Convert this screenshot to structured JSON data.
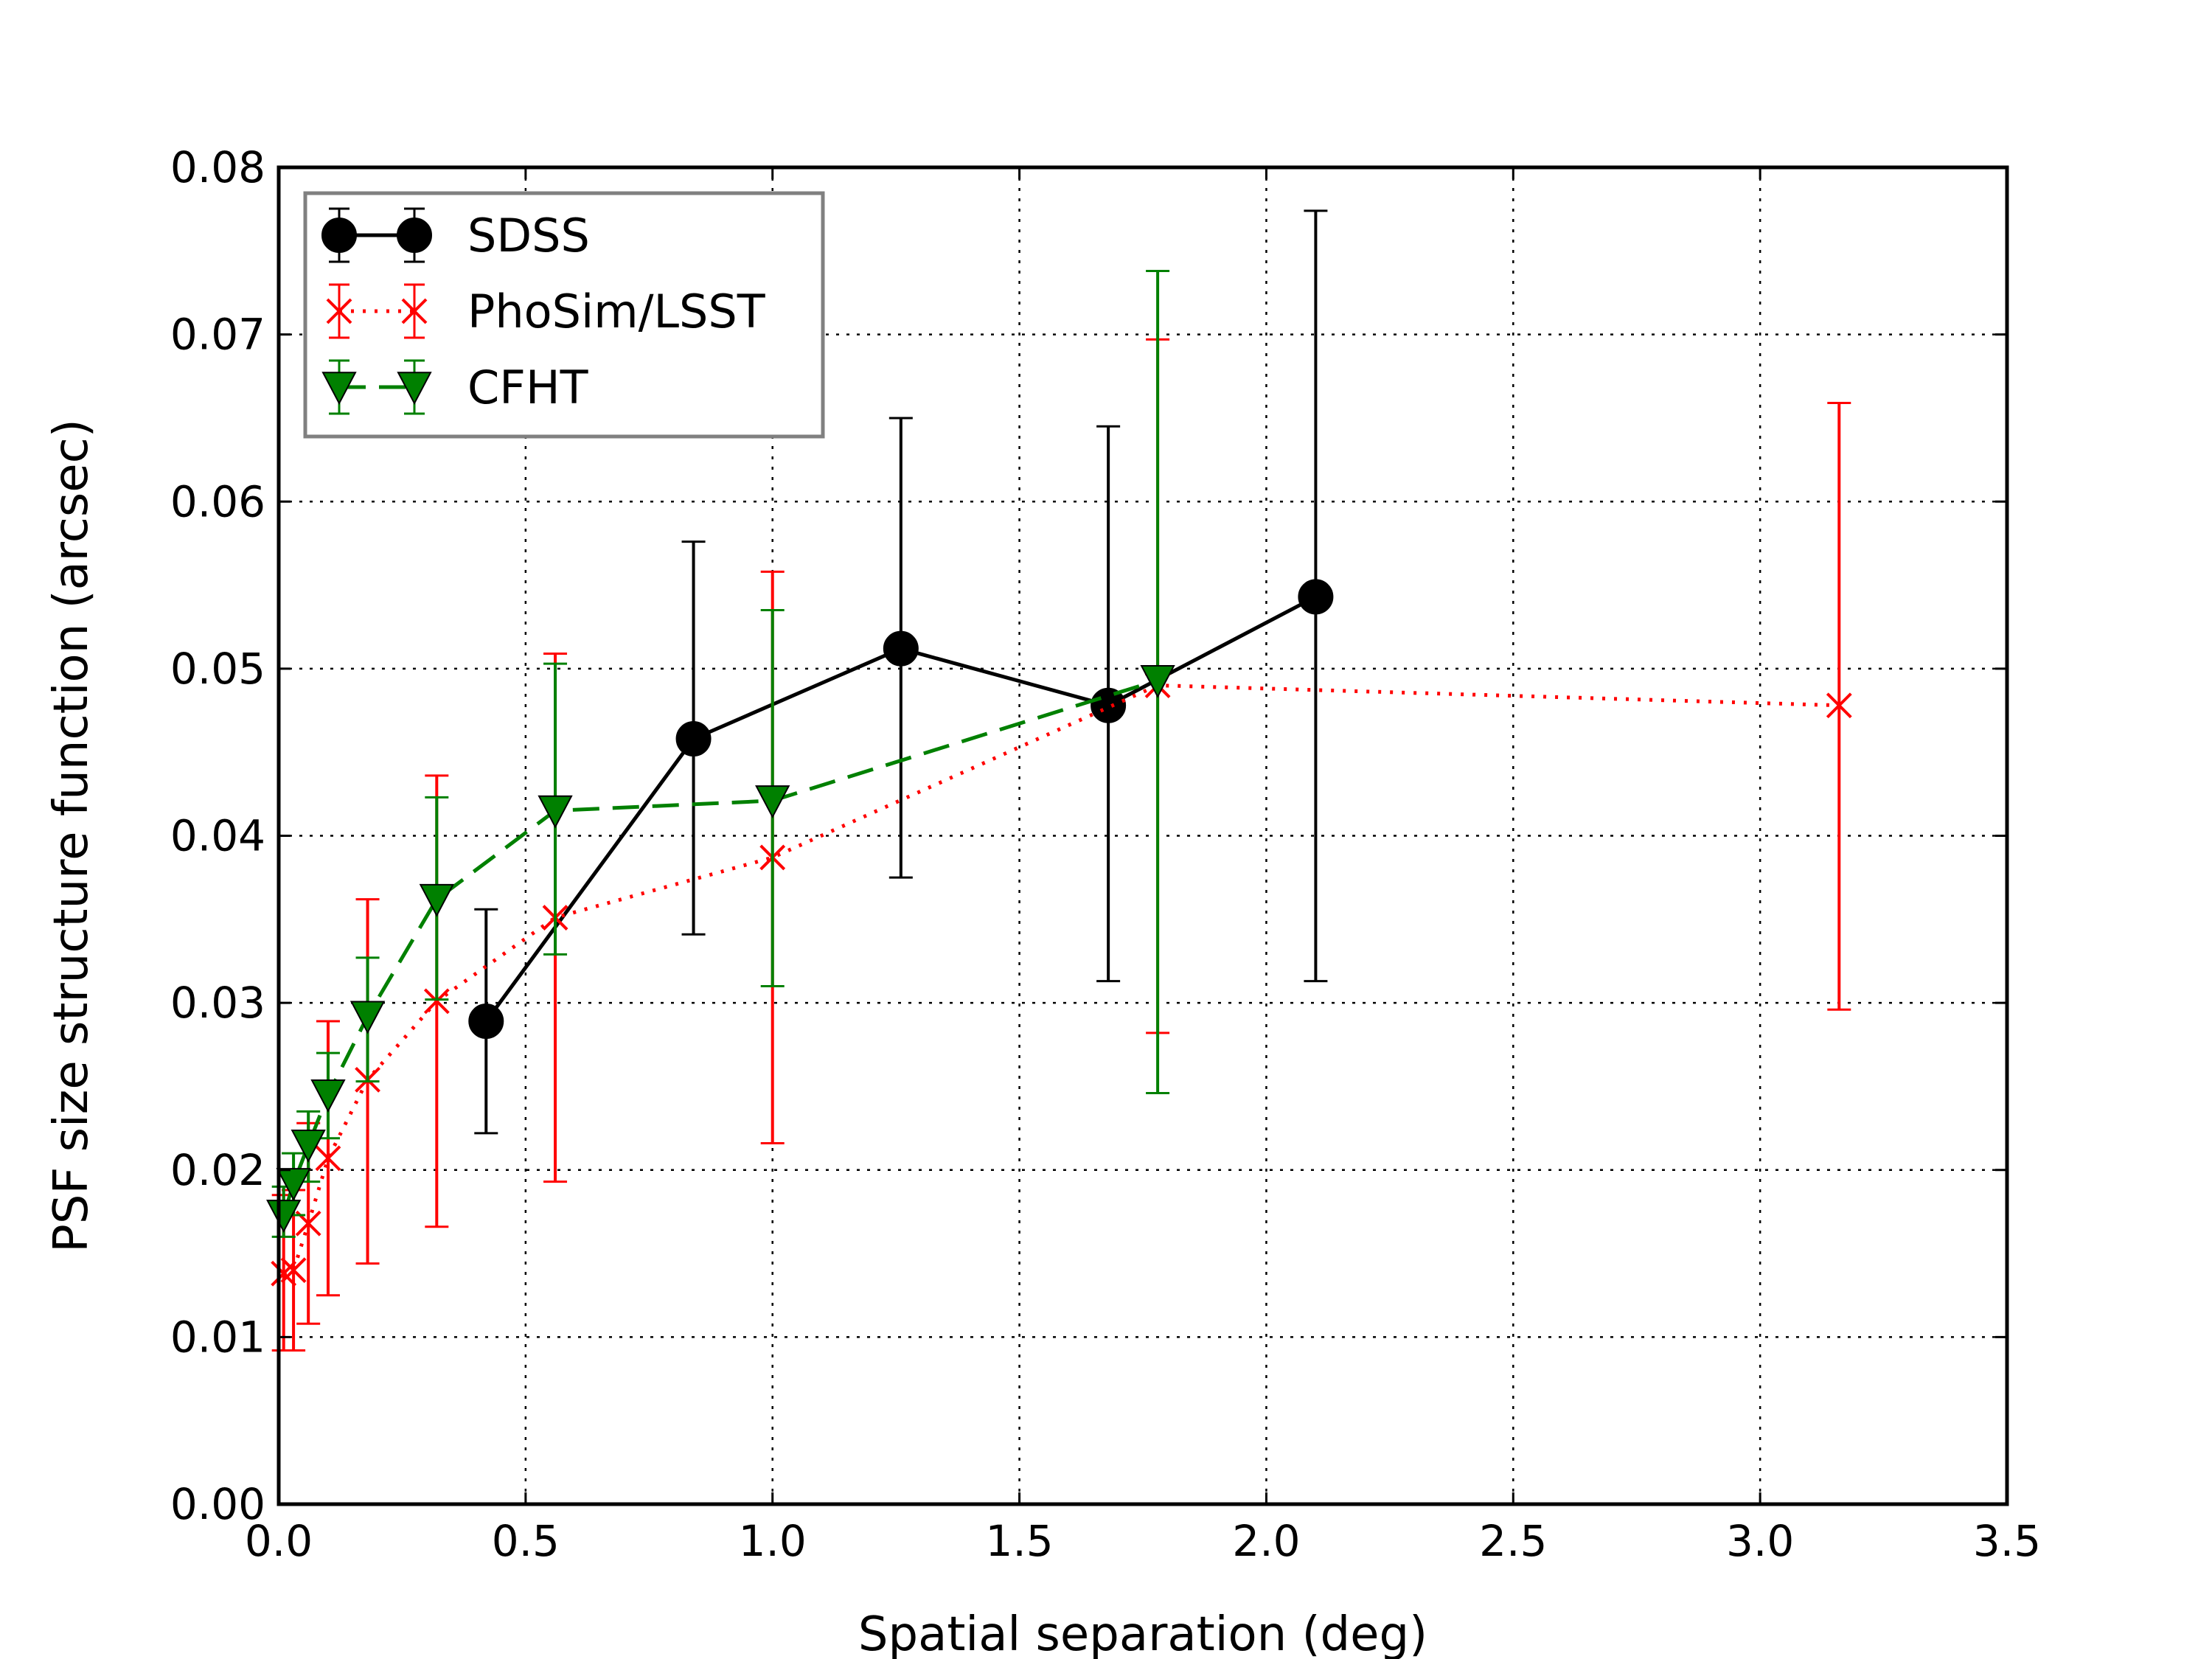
{
  "chart_data": {
    "type": "line",
    "title": "",
    "xlabel": "Spatial separation (deg)",
    "ylabel": "PSF size structure function (arcsec)",
    "xlim": [
      0.0,
      3.5
    ],
    "ylim": [
      0.0,
      0.08
    ],
    "xticks": [
      "0.0",
      "0.5",
      "1.0",
      "1.5",
      "2.0",
      "2.5",
      "3.0",
      "3.5"
    ],
    "yticks": [
      "0.00",
      "0.01",
      "0.02",
      "0.03",
      "0.04",
      "0.05",
      "0.06",
      "0.07",
      "0.08"
    ],
    "grid": true,
    "legend_position": "top-left",
    "series": [
      {
        "name": "SDSS",
        "color": "#000000",
        "linestyle": "solid",
        "marker": "circle",
        "x": [
          0.42,
          0.84,
          1.26,
          1.68,
          2.1
        ],
        "y": [
          0.0289,
          0.0458,
          0.0512,
          0.0478,
          0.0543
        ],
        "yerr_low": [
          0.0222,
          0.0341,
          0.0375,
          0.0313,
          0.0313
        ],
        "yerr_high": [
          0.0356,
          0.0576,
          0.065,
          0.0645,
          0.0774
        ]
      },
      {
        "name": "PhoSim/LSST",
        "color": "#ff0000",
        "linestyle": "dotted",
        "marker": "x",
        "x": [
          0.01,
          0.03,
          0.06,
          0.1,
          0.18,
          0.32,
          0.56,
          1.0,
          1.78,
          3.16
        ],
        "y": [
          0.0138,
          0.014,
          0.0168,
          0.0207,
          0.0254,
          0.0301,
          0.0351,
          0.0387,
          0.049,
          0.0478
        ],
        "yerr_low": [
          0.0092,
          0.0092,
          0.0108,
          0.0125,
          0.0144,
          0.0166,
          0.0193,
          0.0216,
          0.0282,
          0.0296
        ],
        "yerr_high": [
          0.0185,
          0.0188,
          0.0228,
          0.0289,
          0.0362,
          0.0436,
          0.0509,
          0.0558,
          0.0697,
          0.0659
        ]
      },
      {
        "name": "CFHT",
        "color": "#008000",
        "linestyle": "dashed",
        "marker": "triangle-down",
        "x": [
          0.01,
          0.03,
          0.06,
          0.1,
          0.18,
          0.32,
          0.56,
          1.0,
          1.78
        ],
        "y": [
          0.0173,
          0.0192,
          0.0215,
          0.0245,
          0.0292,
          0.0362,
          0.0415,
          0.0421,
          0.0493
        ],
        "yerr_low": [
          0.016,
          0.0173,
          0.0193,
          0.0219,
          0.0253,
          0.0302,
          0.0329,
          0.031,
          0.0246
        ],
        "yerr_high": [
          0.019,
          0.021,
          0.0235,
          0.027,
          0.0327,
          0.0423,
          0.0503,
          0.0535,
          0.0738
        ]
      }
    ]
  }
}
